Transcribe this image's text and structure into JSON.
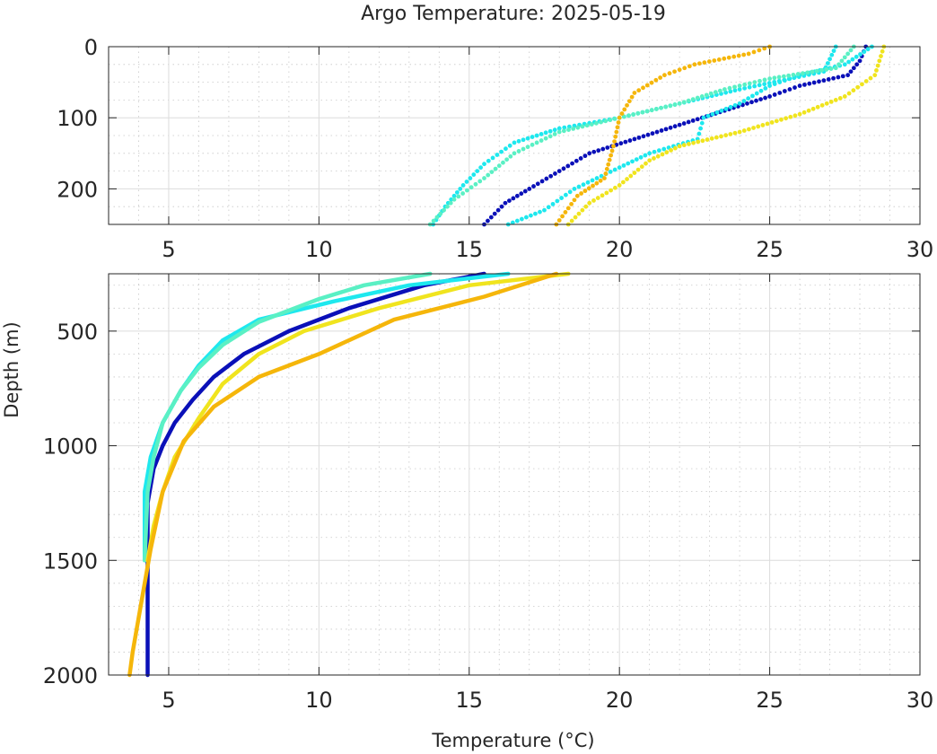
{
  "chart_data": [
    {
      "type": "scatter",
      "title": "Argo Temperature: 2025-05-19",
      "xlabel": "",
      "ylabel": "",
      "xlim": [
        3,
        30
      ],
      "ylim": [
        250,
        0
      ],
      "y_reversed": true,
      "grid": "on (major and minor)",
      "xticks": [
        5,
        10,
        15,
        20,
        25,
        30
      ],
      "yticks": [
        0,
        100,
        200
      ],
      "series": [
        {
          "color": "#0a10b8",
          "values": [
            [
              28.2,
              0
            ],
            [
              28.0,
              20
            ],
            [
              27.6,
              40
            ],
            [
              26.0,
              55
            ],
            [
              25.0,
              70
            ],
            [
              23.5,
              90
            ],
            [
              22.0,
              110
            ],
            [
              20.5,
              130
            ],
            [
              19.0,
              150
            ],
            [
              18.0,
              175
            ],
            [
              17.0,
              200
            ],
            [
              16.2,
              220
            ],
            [
              15.5,
              250
            ]
          ]
        },
        {
          "color": "#1ee8ee",
          "values": [
            [
              28.4,
              0
            ],
            [
              27.5,
              25
            ],
            [
              26.0,
              40
            ],
            [
              25.0,
              55
            ],
            [
              24.0,
              80
            ],
            [
              22.8,
              100
            ],
            [
              22.6,
              130
            ],
            [
              21.0,
              150
            ],
            [
              20.0,
              170
            ],
            [
              18.5,
              200
            ],
            [
              17.5,
              230
            ],
            [
              16.3,
              250
            ]
          ]
        },
        {
          "color": "#1ee8ee",
          "values": [
            [
              27.2,
              0
            ],
            [
              26.8,
              35
            ],
            [
              24.0,
              60
            ],
            [
              22.0,
              80
            ],
            [
              20.0,
              100
            ],
            [
              18.0,
              115
            ],
            [
              16.5,
              135
            ],
            [
              15.5,
              165
            ],
            [
              14.8,
              195
            ],
            [
              14.2,
              225
            ],
            [
              13.8,
              250
            ]
          ]
        },
        {
          "color": "#5af0c4",
          "values": [
            [
              27.8,
              0
            ],
            [
              27.2,
              30
            ],
            [
              25.0,
              45
            ],
            [
              23.5,
              60
            ],
            [
              22.0,
              80
            ],
            [
              20.0,
              100
            ],
            [
              18.0,
              120
            ],
            [
              16.5,
              150
            ],
            [
              15.5,
              185
            ],
            [
              14.5,
              215
            ],
            [
              13.7,
              250
            ]
          ]
        },
        {
          "color": "#f0e41e",
          "values": [
            [
              28.8,
              0
            ],
            [
              28.5,
              40
            ],
            [
              27.5,
              70
            ],
            [
              26.0,
              95
            ],
            [
              24.0,
              120
            ],
            [
              22.0,
              140
            ],
            [
              21.0,
              160
            ],
            [
              20.0,
              195
            ],
            [
              19.0,
              220
            ],
            [
              18.3,
              250
            ]
          ]
        },
        {
          "color": "#f5b60a",
          "values": [
            [
              25.0,
              0
            ],
            [
              24.3,
              10
            ],
            [
              22.5,
              25
            ],
            [
              21.5,
              40
            ],
            [
              20.5,
              65
            ],
            [
              20.0,
              100
            ],
            [
              19.8,
              140
            ],
            [
              19.5,
              185
            ],
            [
              18.6,
              210
            ],
            [
              17.9,
              250
            ]
          ]
        }
      ]
    },
    {
      "type": "line",
      "title": "",
      "xlabel": "Temperature (°C)",
      "ylabel": "Depth (m)",
      "xlim": [
        3,
        30
      ],
      "ylim": [
        2000,
        250
      ],
      "y_reversed": true,
      "grid": "on (major and minor)",
      "xticks": [
        5,
        10,
        15,
        20,
        25,
        30
      ],
      "yticks": [
        500,
        1000,
        1500,
        2000
      ],
      "series": [
        {
          "color": "#0a10b8",
          "values": [
            [
              15.5,
              250
            ],
            [
              13.5,
              300
            ],
            [
              11.0,
              400
            ],
            [
              9.0,
              500
            ],
            [
              7.5,
              600
            ],
            [
              6.5,
              700
            ],
            [
              5.8,
              800
            ],
            [
              5.2,
              900
            ],
            [
              4.8,
              1000
            ],
            [
              4.5,
              1100
            ],
            [
              4.3,
              1250
            ],
            [
              4.3,
              1500
            ],
            [
              4.3,
              2000
            ]
          ]
        },
        {
          "color": "#1ee8ee",
          "values": [
            [
              16.3,
              250
            ],
            [
              13.0,
              300
            ],
            [
              10.5,
              370
            ],
            [
              8.0,
              450
            ],
            [
              6.8,
              540
            ],
            [
              6.0,
              650
            ],
            [
              5.4,
              760
            ],
            [
              4.8,
              900
            ],
            [
              4.4,
              1050
            ],
            [
              4.2,
              1200
            ],
            [
              4.2,
              1500
            ]
          ]
        },
        {
          "color": "#5af0c4",
          "values": [
            [
              13.7,
              250
            ],
            [
              11.5,
              300
            ],
            [
              10.0,
              360
            ],
            [
              8.0,
              460
            ],
            [
              6.8,
              560
            ],
            [
              6.0,
              660
            ],
            [
              5.4,
              760
            ],
            [
              4.8,
              900
            ],
            [
              4.5,
              1050
            ],
            [
              4.3,
              1200
            ],
            [
              4.2,
              1500
            ]
          ]
        },
        {
          "color": "#f0e41e",
          "values": [
            [
              18.3,
              250
            ],
            [
              15.0,
              300
            ],
            [
              12.0,
              400
            ],
            [
              9.5,
              500
            ],
            [
              8.0,
              600
            ],
            [
              6.8,
              730
            ],
            [
              6.0,
              880
            ],
            [
              5.2,
              1050
            ],
            [
              4.8,
              1200
            ],
            [
              4.5,
              1350
            ],
            [
              4.3,
              1500
            ]
          ]
        },
        {
          "color": "#f5b60a",
          "values": [
            [
              17.9,
              250
            ],
            [
              15.5,
              350
            ],
            [
              12.5,
              450
            ],
            [
              10.0,
              600
            ],
            [
              8.0,
              700
            ],
            [
              6.5,
              830
            ],
            [
              5.5,
              980
            ],
            [
              4.8,
              1200
            ],
            [
              4.4,
              1450
            ],
            [
              4.2,
              1600
            ],
            [
              4.0,
              1750
            ],
            [
              3.8,
              1900
            ],
            [
              3.7,
              2000
            ]
          ]
        }
      ]
    }
  ]
}
